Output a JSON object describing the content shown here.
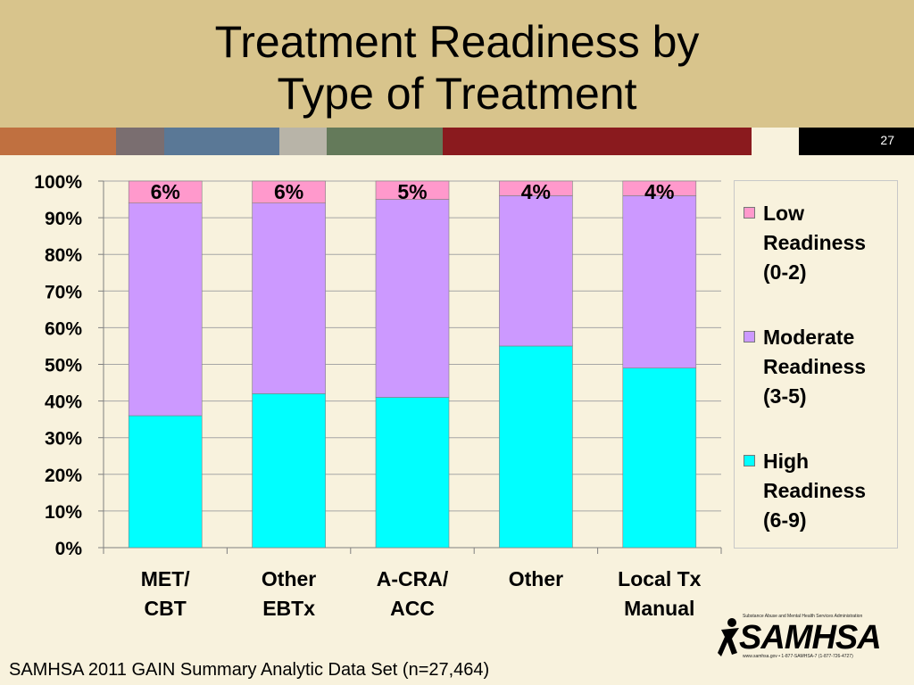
{
  "slide": {
    "title_line1": "Treatment Readiness by",
    "title_line2": "Type of Treatment",
    "slide_number": "27",
    "footnote": "SAMHSA 2011 GAIN Summary Analytic Data Set (n=27,464)"
  },
  "logo": {
    "name": "SAMHSA",
    "tagline": "Substance Abuse and Mental Health Services Administration",
    "contact": "www.samhsa.gov • 1-877-SAMHSA-7 (1-877-726-4727)"
  },
  "colors": {
    "header_bg": "#d8c48c",
    "slide_bg": "#f8f2dd",
    "stripe": [
      "#c07040",
      "#7a6e70",
      "#5a7896",
      "#b8b4a8",
      "#647a5a",
      "#8a1a1e",
      "#f8f2dd",
      "#000000"
    ],
    "high": "#00ffff",
    "moderate": "#cc99ff",
    "low": "#ff99cc"
  },
  "chart_data": {
    "type": "bar",
    "stacked": true,
    "title": "",
    "xlabel": "",
    "ylabel": "",
    "ylim": [
      0,
      100
    ],
    "y_ticks": [
      "0%",
      "10%",
      "20%",
      "30%",
      "40%",
      "50%",
      "60%",
      "70%",
      "80%",
      "90%",
      "100%"
    ],
    "grid": true,
    "legend_position": "right",
    "categories": [
      [
        "MET/",
        "CBT"
      ],
      [
        "Other",
        "EBTx"
      ],
      [
        "A-CRA/",
        "ACC"
      ],
      [
        "Other",
        ""
      ],
      [
        "Local Tx",
        "Manual"
      ]
    ],
    "series": [
      {
        "name": "High Readiness (6-9)",
        "legend_lines": [
          "High",
          "Readiness",
          "(6-9)"
        ],
        "color": "#00ffff",
        "values": [
          36,
          42,
          41,
          55,
          49
        ]
      },
      {
        "name": "Moderate Readiness (3-5)",
        "legend_lines": [
          "Moderate",
          "Readiness",
          "(3-5)"
        ],
        "color": "#cc99ff",
        "values": [
          58,
          52,
          54,
          41,
          47
        ]
      },
      {
        "name": "Low Readiness (0-2)",
        "legend_lines": [
          "Low",
          "Readiness",
          "(0-2)"
        ],
        "color": "#ff99cc",
        "values": [
          6,
          6,
          5,
          4,
          4
        ]
      }
    ],
    "data_labels": [
      "6%",
      "6%",
      "5%",
      "4%",
      "4%"
    ]
  }
}
